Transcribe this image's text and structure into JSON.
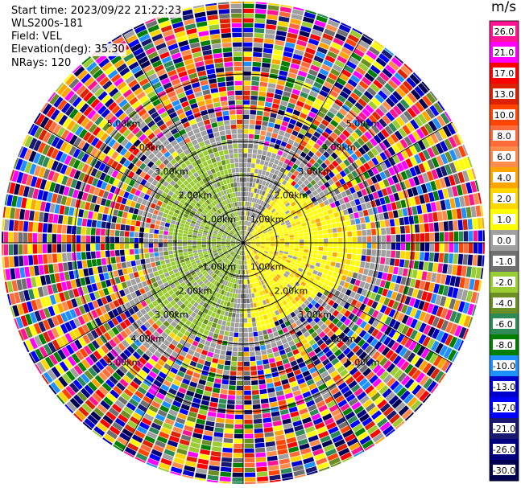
{
  "info": {
    "start_time": "Start time: 2023/09/22 21:22:23",
    "instrument": "WLS200s-181",
    "field": "Field: VEL",
    "elevation": "Elevation(deg): 35.30",
    "nrays": "NRays: 120"
  },
  "colorbar": {
    "unit": "m/s",
    "ticks": [
      "26.0",
      "21.0",
      "17.0",
      "13.0",
      "10.0",
      "8.0",
      "6.0",
      "4.0",
      "2.0",
      "1.0",
      "0.0",
      "-1.0",
      "-2.0",
      "-4.0",
      "-6.0",
      "-8.0",
      "-10.0",
      "-13.0",
      "-17.0",
      "-21.0",
      "-26.0",
      "-30.0"
    ],
    "colors": [
      "#ff1493",
      "#ff00ff",
      "#ff0000",
      "#dd2200",
      "#ff4500",
      "#ff6a3a",
      "#ff8c4a",
      "#ffa500",
      "#ffd700",
      "#ffff00",
      "#a0a0a0",
      "#707070",
      "#9acd32",
      "#6b8e23",
      "#2e8b57",
      "#008000",
      "#1e90ff",
      "#0000cd",
      "#0000ff",
      "#191970",
      "#000080",
      "#000050"
    ]
  },
  "chart_data": {
    "type": "heatmap",
    "subtype": "polar PPI scan",
    "field": "VEL",
    "nrays": 120,
    "range_rings": [
      "1.00km",
      "2.00km",
      "3.00km",
      "4.00km",
      "5.00km"
    ],
    "ring_label_text": "km",
    "pattern": {
      "near_range_west": "green (about -1 to -4 m/s)",
      "near_range_east": "yellow (about +1 to +4 m/s)",
      "near_range_other": "grey (near 0 m/s)",
      "far_range": "random noise across the full scale"
    },
    "grid": true
  }
}
